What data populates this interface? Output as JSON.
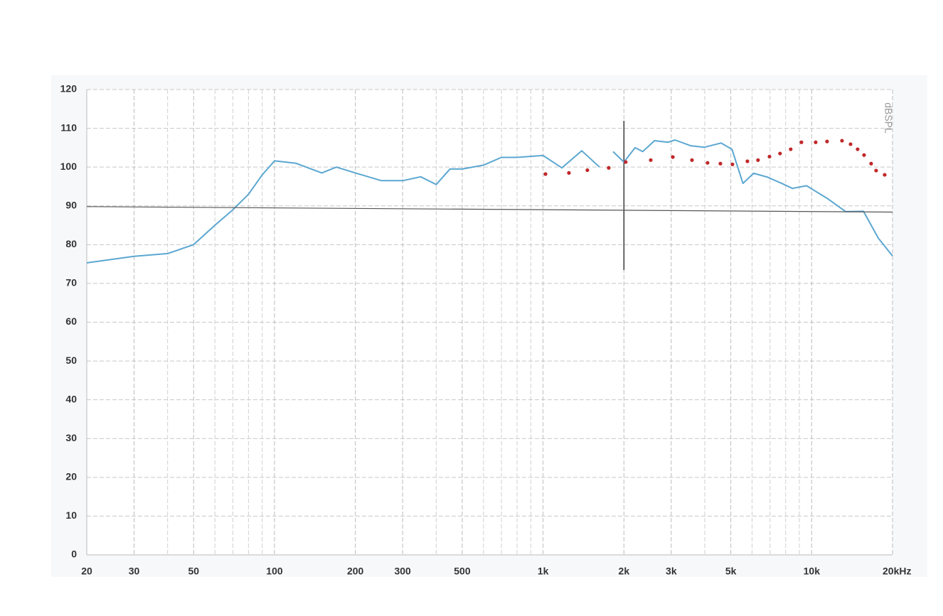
{
  "chart_data": {
    "type": "line",
    "y_label": "dBSPL",
    "xscale": "log",
    "xlim": [
      20,
      20000
    ],
    "ylim": [
      0,
      120
    ],
    "xticks": [
      20,
      30,
      50,
      100,
      200,
      300,
      500,
      {
        "value": 1000,
        "label": "1k"
      },
      {
        "value": 2000,
        "label": "2k"
      },
      {
        "value": 3000,
        "label": "3k"
      },
      {
        "value": 5000,
        "label": "5k"
      },
      {
        "value": 10000,
        "label": "10k"
      },
      {
        "value": 20000,
        "label": "20kHz"
      }
    ],
    "xminor": [
      40,
      60,
      70,
      80,
      90,
      400,
      600,
      700,
      800,
      900,
      4000,
      6000,
      7000,
      8000,
      9000
    ],
    "yticks": [
      0,
      10,
      20,
      30,
      40,
      50,
      60,
      70,
      80,
      90,
      100,
      110,
      120
    ],
    "grid": true,
    "vlines": [
      2000
    ],
    "series": [
      {
        "color": "#5ba7d1",
        "style": "line",
        "x": [
          20,
          30,
          40,
          50,
          60,
          70,
          80,
          90,
          100,
          120,
          150,
          170,
          200,
          250,
          300,
          350,
          400,
          450,
          500,
          600,
          700,
          800,
          1000,
          1175,
          1393,
          1623,
          1700,
          1821,
          2000,
          2200,
          2350,
          2600,
          2920,
          3100,
          3540,
          3980,
          4600,
          5050,
          5550,
          6080,
          6860,
          7730,
          8480,
          9570,
          11500,
          13400,
          15600,
          17700,
          20000
        ],
        "values": [
          75.3,
          77,
          77.7,
          80,
          85,
          89,
          93,
          98,
          101.6,
          101,
          98.5,
          100,
          98.5,
          96.5,
          96.5,
          97.5,
          95.5,
          99.5,
          99.5,
          100.5,
          102.5,
          102.5,
          103,
          99.8,
          104.2,
          100,
          null,
          104,
          101.3,
          105,
          104,
          106.8,
          106.4,
          107,
          105.5,
          105.1,
          106.2,
          104.6,
          95.8,
          98.4,
          97.4,
          95.8,
          94.5,
          95.2,
          91.8,
          88.5,
          88.6,
          81.7,
          77.1
        ]
      },
      {
        "color": "#c0282a",
        "style": "dots",
        "x": [
          1021,
          1248,
          1462,
          1756,
          2031,
          2517,
          3041,
          3584,
          4096,
          4573,
          5071,
          5765,
          6314,
          6966,
          7625,
          8355,
          9160,
          10350,
          11410,
          12970,
          13960,
          14830,
          15670,
          16650,
          17380,
          18700
        ],
        "values": [
          98.2,
          98.5,
          99.2,
          99.8,
          101.3,
          101.8,
          102.6,
          101.8,
          101.1,
          100.9,
          100.7,
          101.5,
          101.8,
          102.7,
          103.5,
          104.6,
          106.4,
          106.4,
          106.6,
          106.8,
          105.9,
          104.6,
          103.1,
          100.9,
          99.1,
          98.0
        ]
      },
      {
        "color": "#555555",
        "style": "line",
        "x": [
          20,
          20000
        ],
        "values": [
          89.8,
          88.4
        ]
      }
    ]
  }
}
